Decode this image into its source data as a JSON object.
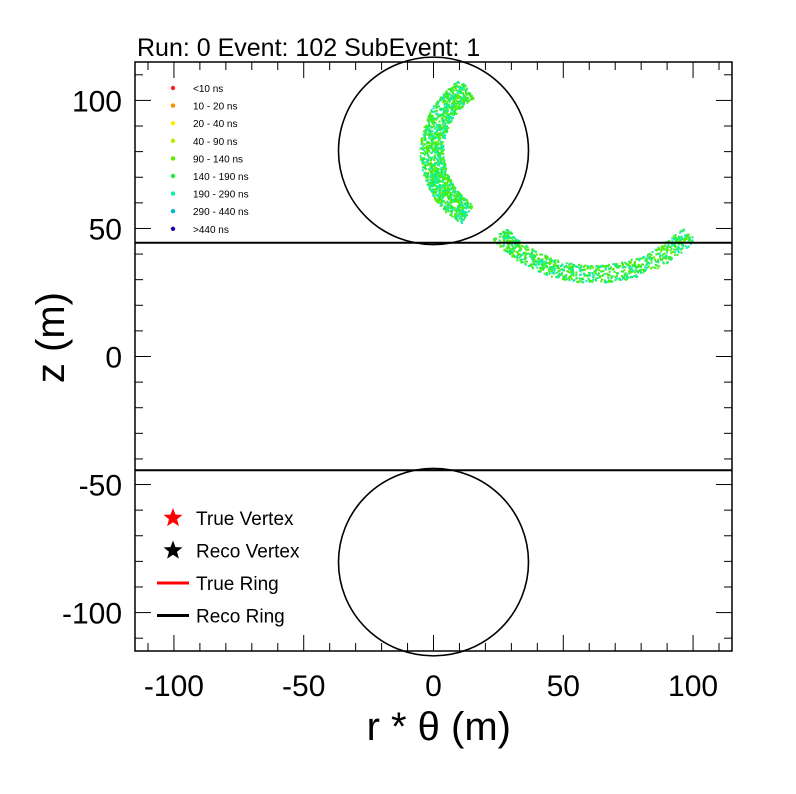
{
  "chart_data": {
    "type": "scatter",
    "title": "Run: 0  Event: 102  SubEvent: 1",
    "xlabel": "r * θ (m)",
    "ylabel": "z (m)",
    "xlim": [
      -115,
      115
    ],
    "ylim": [
      -115,
      115
    ],
    "x_ticks": [
      -100,
      -50,
      0,
      50,
      100
    ],
    "x_tick_labels": [
      "-100",
      "-50",
      "0",
      "50",
      "100"
    ],
    "y_ticks": [
      -100,
      -50,
      0,
      50,
      100
    ],
    "y_tick_labels": [
      "-100",
      "-50",
      "0",
      "50",
      "100"
    ],
    "grid": false,
    "detector": {
      "barrel_lines_z": [
        44.4,
        -44.4
      ],
      "top_cap": {
        "center": [
          0,
          80.3
        ],
        "radius": 36.6
      },
      "bottom_cap": {
        "center": [
          0,
          -80.3
        ],
        "radius": 36.6
      }
    },
    "time_legend": {
      "placement": "top-left",
      "entries": [
        {
          "label": "<10 ns",
          "color": "#ff2020"
        },
        {
          "label": "10 - 20 ns",
          "color": "#ff8c00"
        },
        {
          "label": "20 - 40 ns",
          "color": "#ffee00"
        },
        {
          "label": "40 - 90 ns",
          "color": "#b7ec00"
        },
        {
          "label": "90 - 140 ns",
          "color": "#55ee00"
        },
        {
          "label": "140 - 190 ns",
          "color": "#22ee44"
        },
        {
          "label": "190 - 290 ns",
          "color": "#11eeaa"
        },
        {
          "label": "290 - 440 ns",
          "color": "#00bbcc"
        },
        {
          "label": ">440 ns",
          "color": "#2200aa"
        }
      ]
    },
    "series": [
      {
        "kind": "ring-arc-top-cap",
        "center": [
          28.5,
          80
        ],
        "radius": 29,
        "angle_start_deg": 122,
        "angle_end_deg": 238,
        "thickness": 4.5,
        "point_count": 1400,
        "colors": [
          "#55ee00",
          "#22ee44",
          "#11eeaa"
        ]
      },
      {
        "kind": "ring-arc-barrel",
        "center": [
          62,
          82
        ],
        "radius": 50,
        "angle_start_deg": 223,
        "angle_end_deg": 317,
        "thickness": 3.5,
        "point_count": 900,
        "colors": [
          "#55ee00",
          "#22ee44",
          "#11eeaa"
        ]
      }
    ],
    "object_legend": {
      "placement": "bottom-left",
      "entries": [
        {
          "label": "True Vertex",
          "symbol": "star",
          "color": "#ff0000"
        },
        {
          "label": "Reco Vertex",
          "symbol": "star",
          "color": "#000000"
        },
        {
          "label": "True Ring",
          "symbol": "line",
          "color": "#ff0000"
        },
        {
          "label": "Reco Ring",
          "symbol": "line",
          "color": "#000000"
        }
      ]
    }
  }
}
